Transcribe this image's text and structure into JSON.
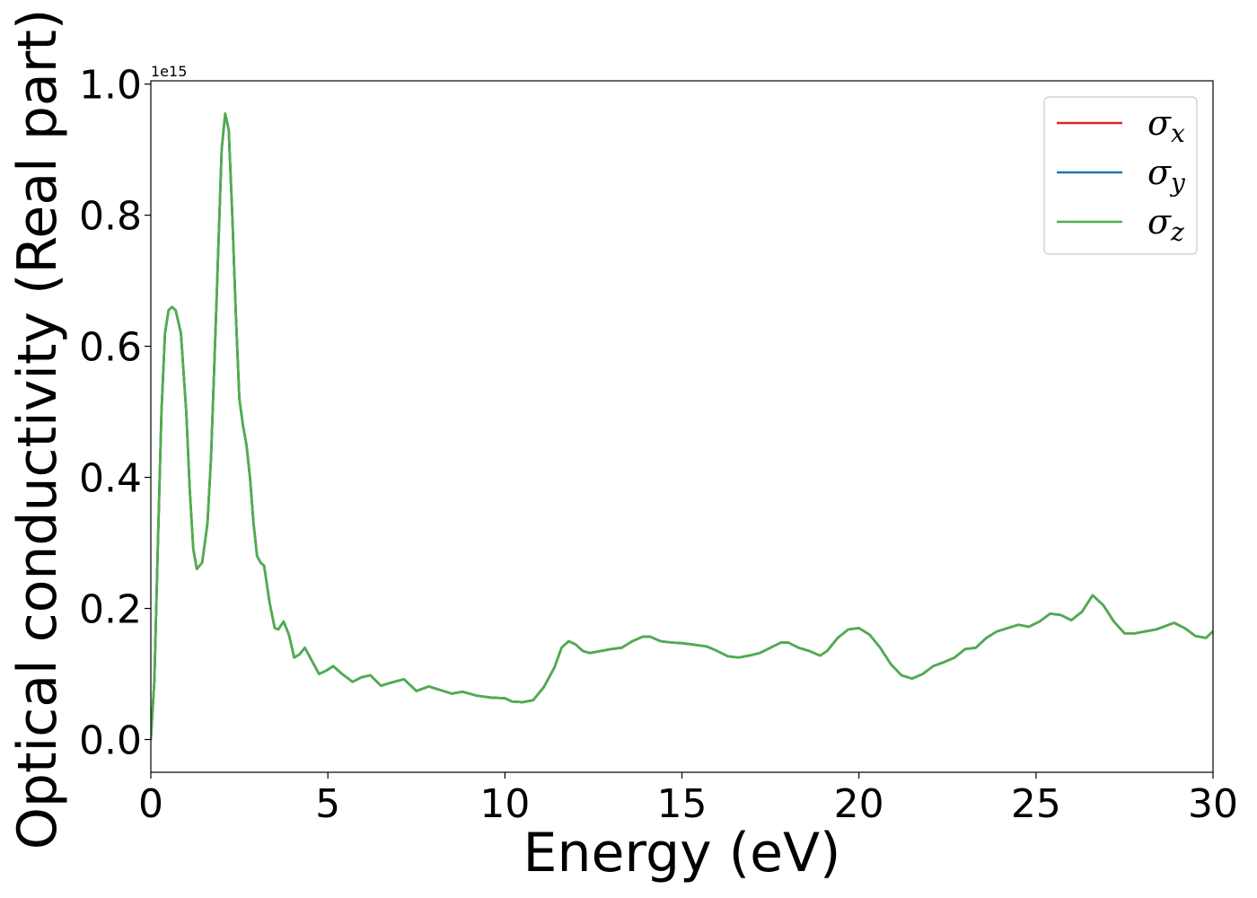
{
  "chart_data": {
    "type": "line",
    "title": "",
    "xlabel": "Energy (eV)",
    "ylabel": "Optical conductivity (Real part)",
    "y_offset_label": "1e15",
    "xlim": [
      0,
      30
    ],
    "ylim": [
      -0.05,
      1.005
    ],
    "x_ticks": [
      0,
      5,
      10,
      15,
      20,
      25,
      30
    ],
    "x_tick_labels": [
      "0",
      "5",
      "10",
      "15",
      "20",
      "25",
      "30"
    ],
    "y_ticks": [
      0.0,
      0.2,
      0.4,
      0.6,
      0.8,
      1.0
    ],
    "y_tick_labels": [
      "0.0",
      "0.2",
      "0.4",
      "0.6",
      "0.8",
      "1.0"
    ],
    "grid": false,
    "legend_position": "top-right",
    "x": [
      0,
      0.1,
      0.2,
      0.3,
      0.4,
      0.5,
      0.6,
      0.7,
      0.85,
      1.0,
      1.1,
      1.2,
      1.3,
      1.45,
      1.6,
      1.7,
      1.85,
      2.0,
      2.1,
      2.2,
      2.3,
      2.4,
      2.5,
      2.6,
      2.7,
      2.8,
      2.9,
      3.0,
      3.1,
      3.2,
      3.35,
      3.5,
      3.6,
      3.75,
      3.9,
      4.05,
      4.2,
      4.35,
      4.55,
      4.75,
      4.95,
      5.15,
      5.4,
      5.7,
      5.95,
      6.2,
      6.5,
      6.8,
      7.15,
      7.5,
      7.85,
      8.2,
      8.5,
      8.8,
      9.2,
      9.6,
      10.0,
      10.2,
      10.5,
      10.8,
      11.1,
      11.4,
      11.6,
      11.8,
      12.0,
      12.2,
      12.4,
      12.7,
      13.0,
      13.3,
      13.6,
      13.9,
      14.1,
      14.4,
      14.7,
      15.0,
      15.3,
      15.7,
      16.0,
      16.3,
      16.6,
      16.9,
      17.2,
      17.5,
      17.8,
      18.0,
      18.3,
      18.6,
      18.9,
      19.1,
      19.4,
      19.7,
      20.0,
      20.3,
      20.6,
      20.9,
      21.2,
      21.5,
      21.8,
      22.1,
      22.4,
      22.7,
      23.0,
      23.3,
      23.6,
      23.9,
      24.2,
      24.5,
      24.8,
      25.1,
      25.4,
      25.7,
      26.0,
      26.3,
      26.6,
      26.9,
      27.2,
      27.5,
      27.8,
      28.1,
      28.4,
      28.6,
      28.9,
      29.2,
      29.5,
      29.8,
      30.0
    ],
    "series": [
      {
        "name": "σx",
        "color": "#d62728",
        "values": [
          0.0,
          0.09,
          0.3,
          0.5,
          0.62,
          0.655,
          0.66,
          0.655,
          0.62,
          0.5,
          0.38,
          0.29,
          0.26,
          0.27,
          0.33,
          0.43,
          0.66,
          0.9,
          0.955,
          0.93,
          0.8,
          0.65,
          0.52,
          0.48,
          0.45,
          0.4,
          0.33,
          0.28,
          0.27,
          0.265,
          0.21,
          0.17,
          0.168,
          0.18,
          0.16,
          0.125,
          0.13,
          0.14,
          0.12,
          0.1,
          0.105,
          0.112,
          0.1,
          0.088,
          0.095,
          0.098,
          0.082,
          0.087,
          0.092,
          0.074,
          0.081,
          0.075,
          0.07,
          0.073,
          0.067,
          0.064,
          0.063,
          0.058,
          0.057,
          0.06,
          0.08,
          0.11,
          0.14,
          0.15,
          0.145,
          0.135,
          0.132,
          0.135,
          0.138,
          0.14,
          0.15,
          0.157,
          0.157,
          0.15,
          0.148,
          0.147,
          0.145,
          0.142,
          0.135,
          0.127,
          0.125,
          0.128,
          0.132,
          0.14,
          0.148,
          0.148,
          0.14,
          0.135,
          0.128,
          0.135,
          0.155,
          0.168,
          0.17,
          0.16,
          0.14,
          0.115,
          0.098,
          0.093,
          0.1,
          0.112,
          0.118,
          0.125,
          0.138,
          0.14,
          0.155,
          0.165,
          0.17,
          0.175,
          0.172,
          0.18,
          0.192,
          0.19,
          0.182,
          0.195,
          0.22,
          0.205,
          0.18,
          0.162,
          0.162,
          0.165,
          0.168,
          0.172,
          0.178,
          0.17,
          0.158,
          0.155,
          0.165
        ]
      },
      {
        "name": "σy",
        "color": "#1f77b4",
        "values": [
          0.0,
          0.09,
          0.3,
          0.5,
          0.62,
          0.655,
          0.66,
          0.655,
          0.62,
          0.5,
          0.38,
          0.29,
          0.26,
          0.27,
          0.33,
          0.43,
          0.66,
          0.9,
          0.955,
          0.93,
          0.8,
          0.65,
          0.52,
          0.48,
          0.45,
          0.4,
          0.33,
          0.28,
          0.27,
          0.265,
          0.21,
          0.17,
          0.168,
          0.18,
          0.16,
          0.125,
          0.13,
          0.14,
          0.12,
          0.1,
          0.105,
          0.112,
          0.1,
          0.088,
          0.095,
          0.098,
          0.082,
          0.087,
          0.092,
          0.074,
          0.081,
          0.075,
          0.07,
          0.073,
          0.067,
          0.064,
          0.063,
          0.058,
          0.057,
          0.06,
          0.08,
          0.11,
          0.14,
          0.15,
          0.145,
          0.135,
          0.132,
          0.135,
          0.138,
          0.14,
          0.15,
          0.157,
          0.157,
          0.15,
          0.148,
          0.147,
          0.145,
          0.142,
          0.135,
          0.127,
          0.125,
          0.128,
          0.132,
          0.14,
          0.148,
          0.148,
          0.14,
          0.135,
          0.128,
          0.135,
          0.155,
          0.168,
          0.17,
          0.16,
          0.14,
          0.115,
          0.098,
          0.093,
          0.1,
          0.112,
          0.118,
          0.125,
          0.138,
          0.14,
          0.155,
          0.165,
          0.17,
          0.175,
          0.172,
          0.18,
          0.192,
          0.19,
          0.182,
          0.195,
          0.22,
          0.205,
          0.18,
          0.162,
          0.162,
          0.165,
          0.168,
          0.172,
          0.178,
          0.17,
          0.158,
          0.155,
          0.165
        ]
      },
      {
        "name": "σz",
        "color": "#4daf4a",
        "values": [
          0.0,
          0.09,
          0.3,
          0.5,
          0.62,
          0.655,
          0.66,
          0.655,
          0.62,
          0.5,
          0.38,
          0.29,
          0.26,
          0.27,
          0.33,
          0.43,
          0.66,
          0.9,
          0.955,
          0.93,
          0.8,
          0.65,
          0.52,
          0.48,
          0.45,
          0.4,
          0.33,
          0.28,
          0.27,
          0.265,
          0.21,
          0.17,
          0.168,
          0.18,
          0.16,
          0.125,
          0.13,
          0.14,
          0.12,
          0.1,
          0.105,
          0.112,
          0.1,
          0.088,
          0.095,
          0.098,
          0.082,
          0.087,
          0.092,
          0.074,
          0.081,
          0.075,
          0.07,
          0.073,
          0.067,
          0.064,
          0.063,
          0.058,
          0.057,
          0.06,
          0.08,
          0.11,
          0.14,
          0.15,
          0.145,
          0.135,
          0.132,
          0.135,
          0.138,
          0.14,
          0.15,
          0.157,
          0.157,
          0.15,
          0.148,
          0.147,
          0.145,
          0.142,
          0.135,
          0.127,
          0.125,
          0.128,
          0.132,
          0.14,
          0.148,
          0.148,
          0.14,
          0.135,
          0.128,
          0.135,
          0.155,
          0.168,
          0.17,
          0.16,
          0.14,
          0.115,
          0.098,
          0.093,
          0.1,
          0.112,
          0.118,
          0.125,
          0.138,
          0.14,
          0.155,
          0.165,
          0.17,
          0.175,
          0.172,
          0.18,
          0.192,
          0.19,
          0.182,
          0.195,
          0.22,
          0.205,
          0.18,
          0.162,
          0.162,
          0.165,
          0.168,
          0.172,
          0.178,
          0.17,
          0.158,
          0.155,
          0.165
        ]
      }
    ],
    "legend": [
      {
        "symbol": "σ",
        "sub": "x",
        "color": "#d62728"
      },
      {
        "symbol": "σ",
        "sub": "y",
        "color": "#1f77b4"
      },
      {
        "symbol": "σ",
        "sub": "z",
        "color": "#4daf4a"
      }
    ]
  }
}
